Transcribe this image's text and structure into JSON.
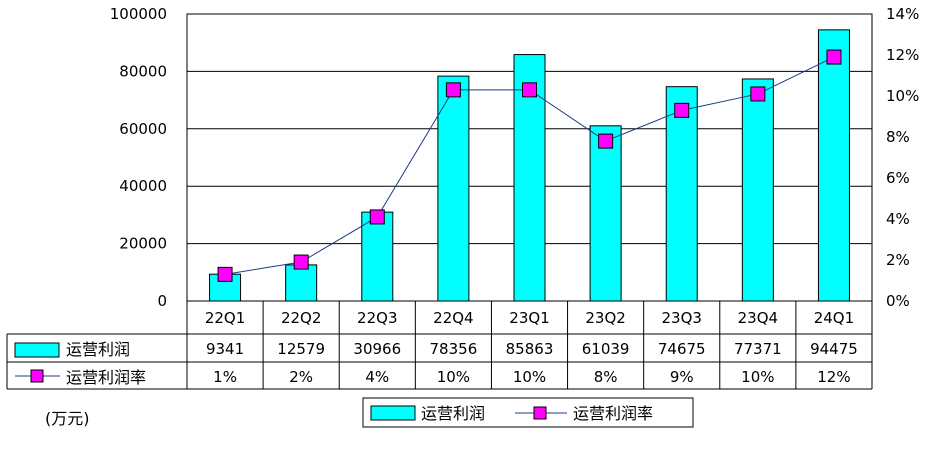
{
  "chart_data": {
    "type": "bar",
    "categories": [
      "22Q1",
      "22Q2",
      "22Q3",
      "22Q4",
      "23Q1",
      "23Q2",
      "23Q3",
      "23Q4",
      "24Q1"
    ],
    "series": [
      {
        "name": "运营利润",
        "type": "bar",
        "axis": "left",
        "color": "#00ffff",
        "values": [
          9341,
          12579,
          30966,
          78356,
          85863,
          61039,
          74675,
          77371,
          94475
        ]
      },
      {
        "name": "运营利润率",
        "type": "line",
        "axis": "right",
        "color": "#ff00ff",
        "line_color": "#1f3a8a",
        "marker": "square",
        "values": [
          1.3,
          1.9,
          4.1,
          10.3,
          10.3,
          7.8,
          9.3,
          10.1,
          11.9
        ],
        "table_values": [
          "1%",
          "2%",
          "4%",
          "10%",
          "10%",
          "8%",
          "9%",
          "10%",
          "12%"
        ]
      }
    ],
    "y_left": {
      "range": [
        0,
        100000
      ],
      "ticks": [
        "0",
        "20000",
        "40000",
        "60000",
        "80000",
        "100000"
      ],
      "unit_label": "(万元)"
    },
    "y_right": {
      "range": [
        0,
        14
      ],
      "ticks": [
        "0%",
        "2%",
        "4%",
        "6%",
        "8%",
        "10%",
        "12%",
        "14%"
      ]
    },
    "data_table": {
      "row_labels": [
        "运营利润",
        "运营利润率"
      ]
    },
    "legend": {
      "items": [
        "运营利润",
        "运营利润率"
      ],
      "placement": "bottom"
    },
    "grid": true
  }
}
